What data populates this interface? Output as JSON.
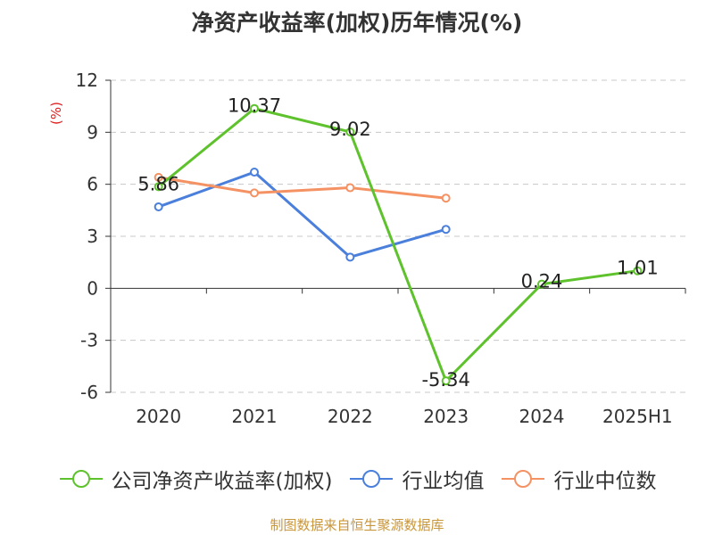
{
  "title": "净资产收益率(加权)历年情况(%)",
  "source": "制图数据来自恒生聚源数据库",
  "chart_data": {
    "type": "line",
    "title": "净资产收益率(加权)历年情况(%)",
    "ylabel": "(%)",
    "categories": [
      "2020",
      "2021",
      "2022",
      "2023",
      "2024",
      "2025H1"
    ],
    "ylim": [
      -6,
      12
    ],
    "yticks": [
      -6,
      -3,
      0,
      3,
      6,
      9,
      12
    ],
    "ytick_labels": [
      "-6",
      "-3",
      "0",
      "3",
      "6",
      "9",
      "12"
    ],
    "grid": true,
    "legend_position": "bottom",
    "series": [
      {
        "name": "公司净资产收益率(加权)",
        "color": "#5ec22c",
        "values": [
          5.86,
          10.37,
          9.02,
          -5.34,
          0.24,
          1.01
        ],
        "labels": [
          "5.86",
          "10.37",
          "9.02",
          "-5.34",
          "0.24",
          "1.01"
        ]
      },
      {
        "name": "行业均值",
        "color": "#4a7fdc",
        "values": [
          4.7,
          6.7,
          1.8,
          3.4,
          null,
          null
        ]
      },
      {
        "name": "行业中位数",
        "color": "#f59264",
        "values": [
          6.4,
          5.5,
          5.8,
          5.2,
          null,
          null
        ]
      }
    ]
  }
}
